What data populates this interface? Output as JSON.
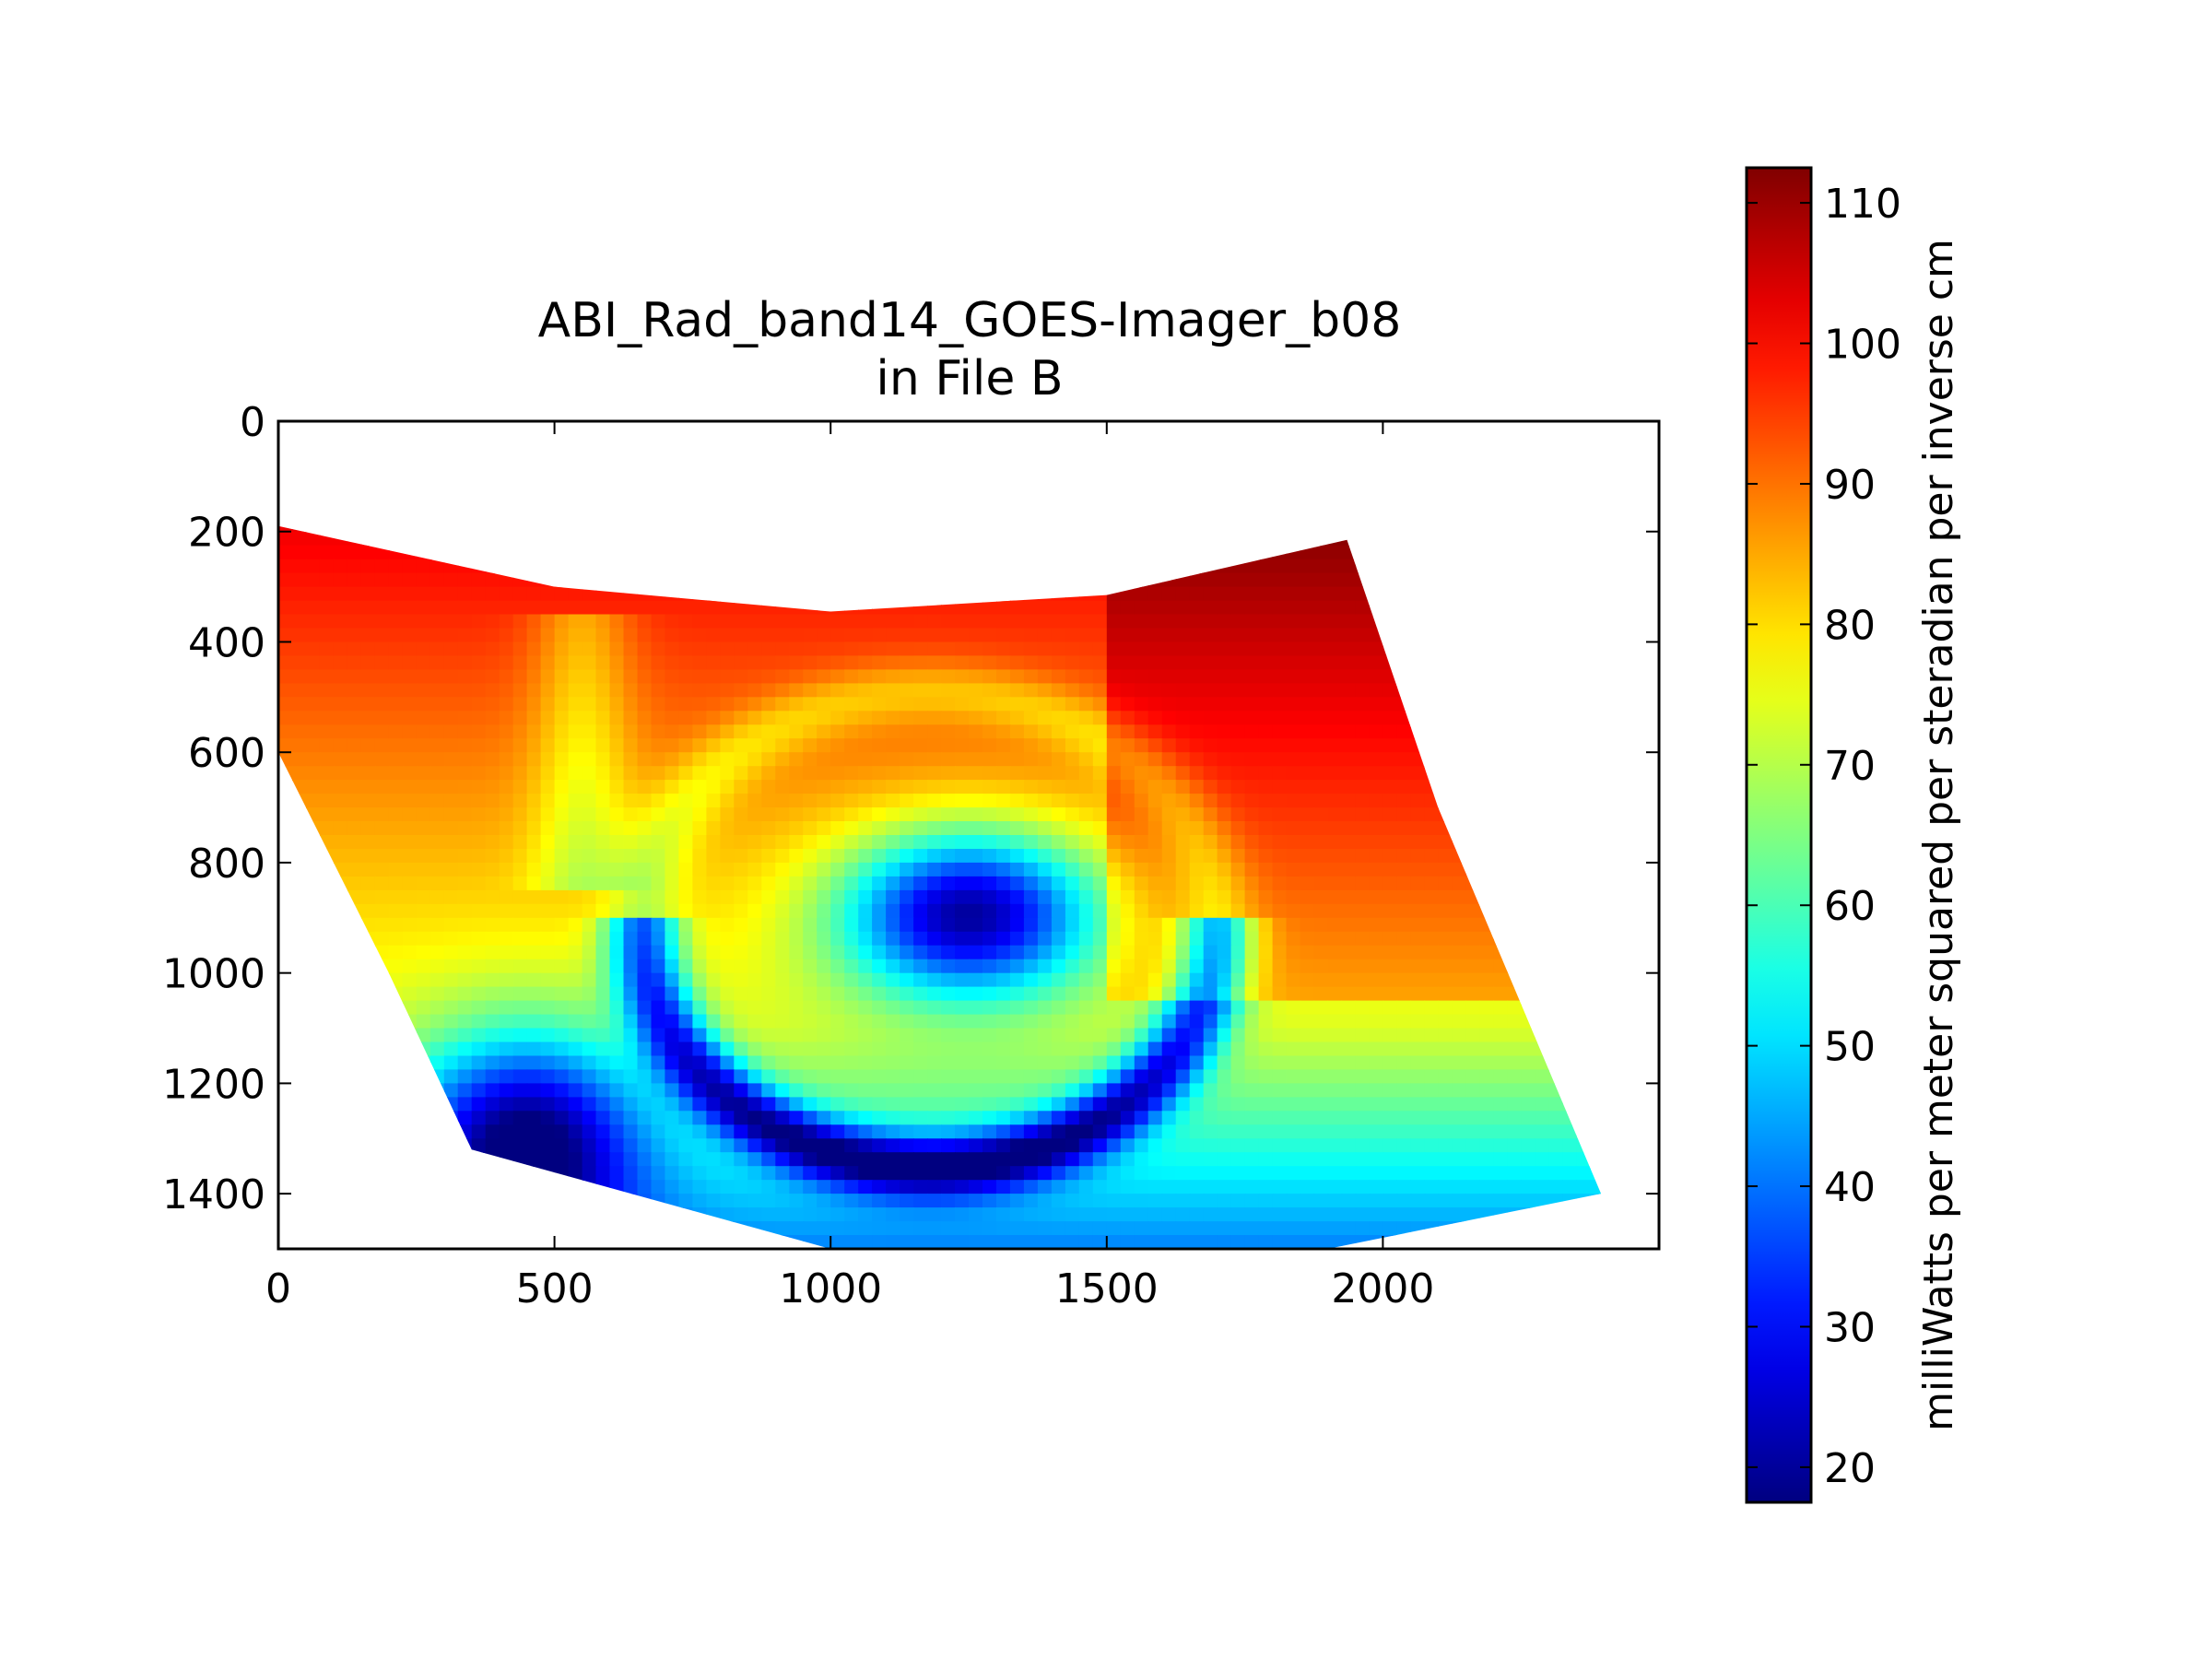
{
  "chart_data": {
    "type": "heatmap",
    "title": "ABI_Rad_band14_GOES-Imager_b08",
    "subtitle": "in File B",
    "x": {
      "range": [
        0,
        2500
      ],
      "ticks": [
        0,
        500,
        1000,
        1500,
        2000
      ],
      "tick_labels": [
        "0",
        "500",
        "1000",
        "1500",
        "2000"
      ]
    },
    "y": {
      "range": [
        1500,
        0
      ],
      "inverted": true,
      "ticks": [
        0,
        200,
        400,
        600,
        800,
        1000,
        1200,
        1400
      ],
      "tick_labels": [
        "0",
        "200",
        "400",
        "600",
        "800",
        "1000",
        "1200",
        "1400"
      ]
    },
    "colorbar": {
      "label": "milliWatts per meter squared per steradian per inverse cm",
      "range": [
        17.5,
        112.5
      ],
      "ticks": [
        20,
        30,
        40,
        50,
        60,
        70,
        80,
        90,
        100,
        110
      ],
      "tick_labels": [
        "20",
        "30",
        "40",
        "50",
        "60",
        "70",
        "80",
        "90",
        "100",
        "110"
      ],
      "colormap": "jet"
    },
    "swath_outline": {
      "top_edge": [
        [
          0,
          190
        ],
        [
          500,
          300
        ],
        [
          1000,
          345
        ],
        [
          1500,
          315
        ],
        [
          1935,
          215
        ]
      ],
      "right_edge": [
        [
          1935,
          215
        ],
        [
          2100,
          700
        ],
        [
          2395,
          1400
        ]
      ],
      "bottom_edge": [
        [
          2395,
          1400
        ],
        [
          1900,
          1500
        ],
        [
          1000,
          1500
        ],
        [
          350,
          1320
        ]
      ],
      "left_edge": [
        [
          350,
          1320
        ],
        [
          200,
          1000
        ],
        [
          0,
          600
        ],
        [
          0,
          190
        ]
      ]
    },
    "value_regions": [
      {
        "region": "north-west",
        "approx_value": 95
      },
      {
        "region": "north-central / north-east",
        "approx_value": 108
      },
      {
        "region": "central band",
        "approx_value": 80
      },
      {
        "region": "east",
        "approx_value": 104
      },
      {
        "region": "cloud core near (1250, 900)",
        "approx_value": 25
      },
      {
        "region": "cloud spiral band near (1200, 1300)",
        "approx_value": 28
      },
      {
        "region": "south-west (450, 1250)",
        "approx_value": 30
      },
      {
        "region": "south",
        "approx_value": 62
      },
      {
        "region": "south-east edge",
        "approx_value": 55
      }
    ],
    "grid": false,
    "legend": "colorbar-right"
  }
}
